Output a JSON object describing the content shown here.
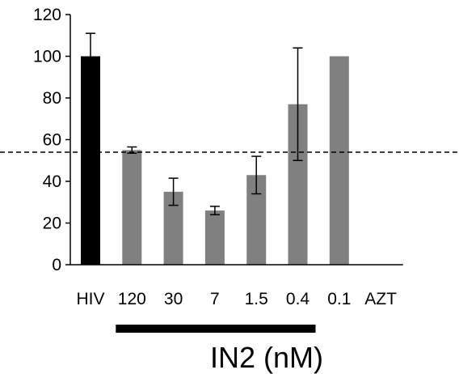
{
  "chart_data": {
    "type": "bar",
    "categories": [
      "HIV",
      "120",
      "30",
      "7",
      "1.5",
      "0.4",
      "0.1",
      "AZT"
    ],
    "values": [
      100,
      55,
      35,
      26,
      43,
      77,
      100,
      0
    ],
    "errors": [
      11,
      1.5,
      6.5,
      2,
      9,
      27,
      0,
      0
    ],
    "bar_colors": [
      "#000000",
      "#808080",
      "#808080",
      "#808080",
      "#808080",
      "#808080",
      "#808080",
      "#808080"
    ],
    "ylim": [
      0,
      120
    ],
    "yticks": [
      0,
      20,
      40,
      60,
      80,
      100,
      120
    ],
    "reference_line": 54,
    "grid": false,
    "group_label": "IN2 (nM)",
    "group_categories": [
      "120",
      "0.4"
    ]
  }
}
